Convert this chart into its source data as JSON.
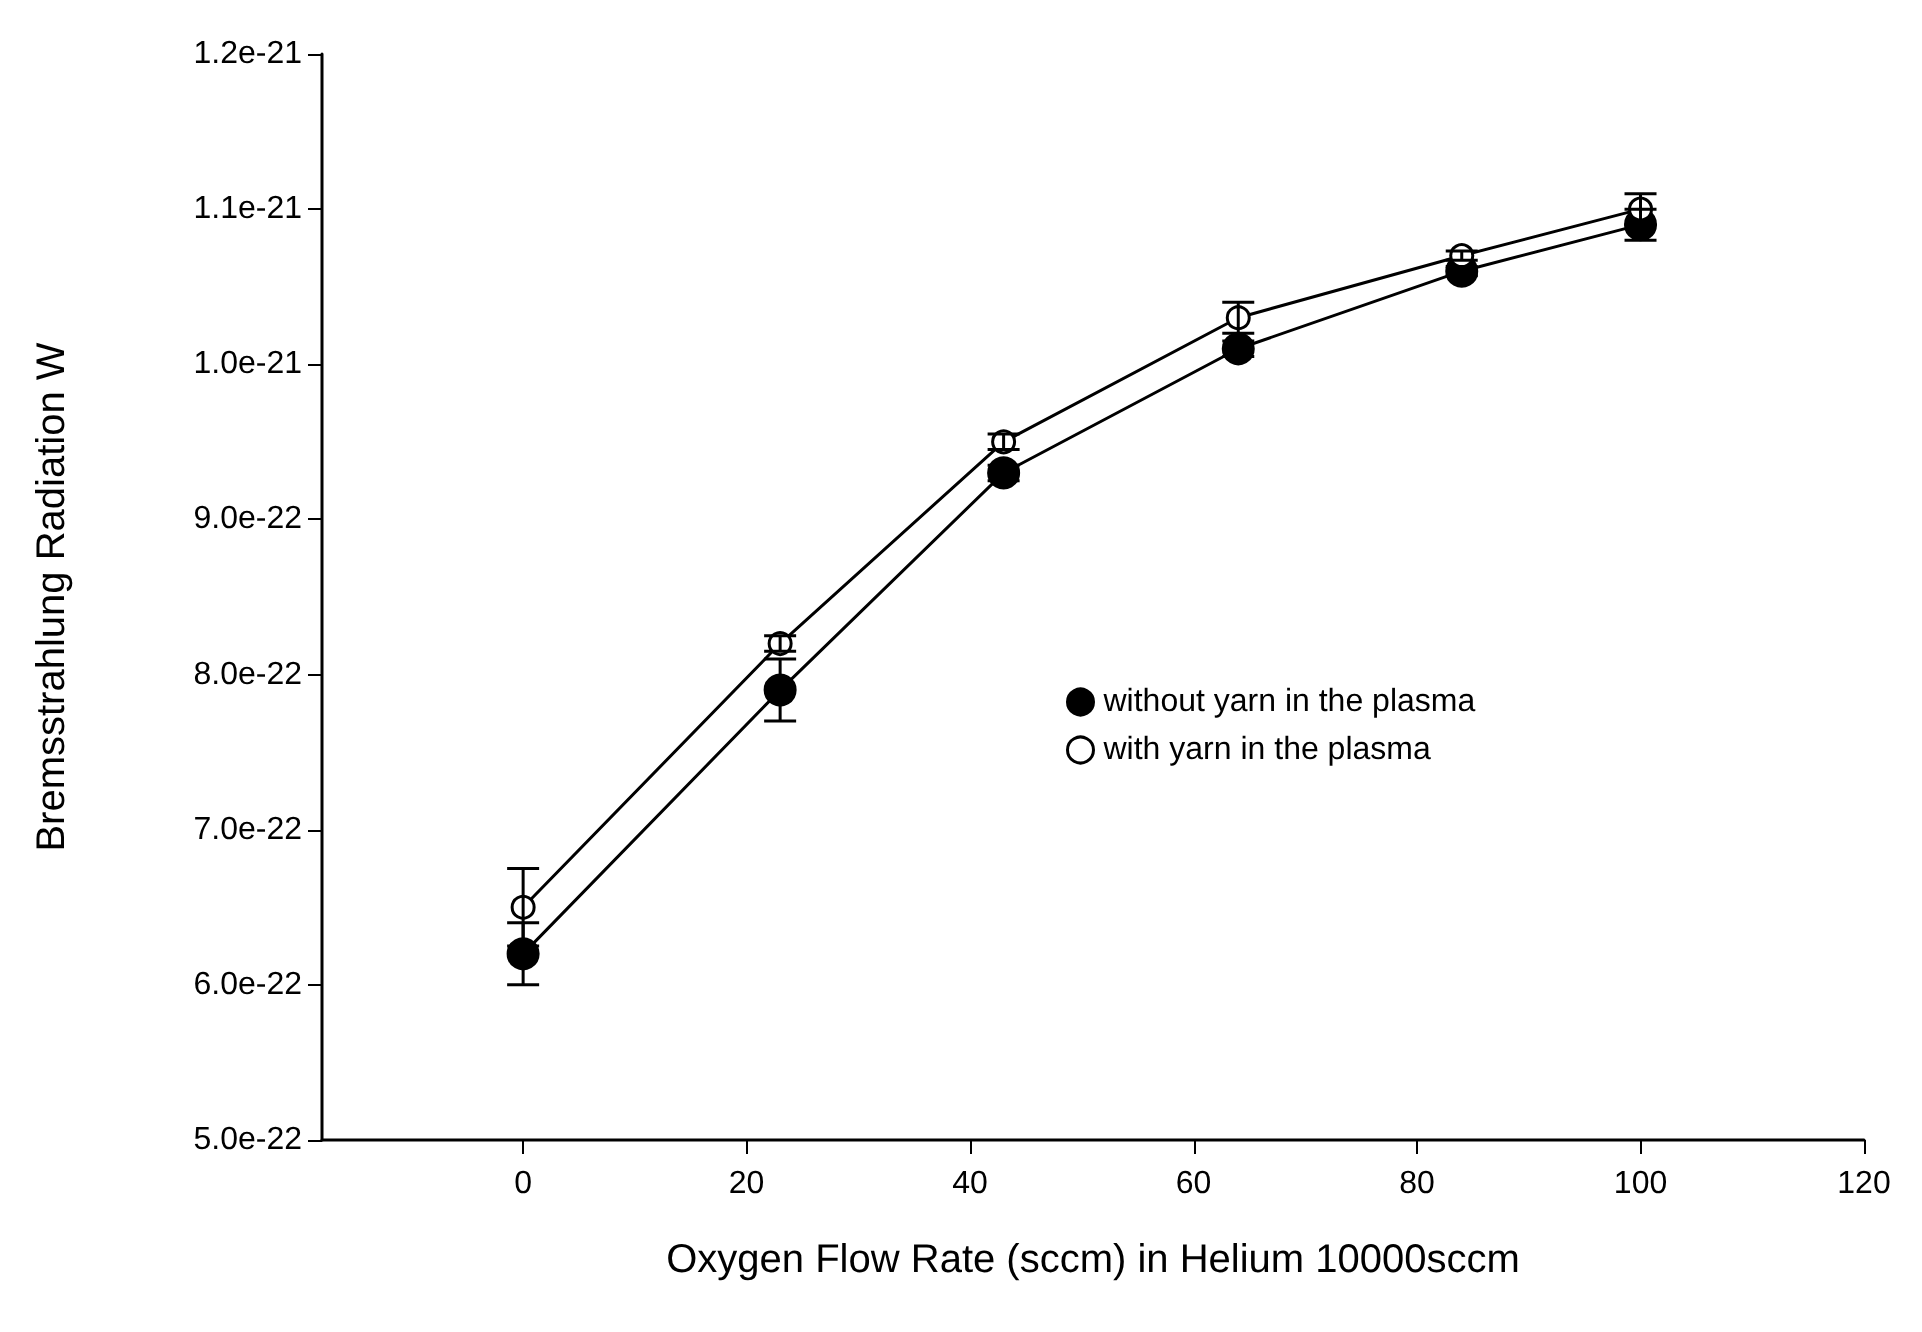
{
  "chart_data": {
    "type": "line",
    "xlabel": "Oxygen Flow Rate (sccm) in Helium 10000sccm",
    "ylabel": "Bremsstrahlung Radiation W",
    "x": [
      0,
      23,
      43,
      64,
      84,
      100
    ],
    "series": [
      {
        "name": "without yarn in the plasma",
        "color": "#000000",
        "values": [
          6.2e-22,
          7.9e-22,
          9.3e-22,
          1.01e-21,
          1.06e-21,
          1.09e-21
        ],
        "errors": [
          2e-23,
          2e-23,
          5e-24,
          5e-24,
          3e-24,
          1e-23
        ]
      },
      {
        "name": "with yarn in the plasma",
        "color": "#000000",
        "values": [
          6.5e-22,
          8.2e-22,
          9.5e-22,
          1.03e-21,
          1.07e-21,
          1.1e-21
        ],
        "errors": [
          2.5e-23,
          5e-24,
          5e-24,
          1e-23,
          3e-24,
          1e-23
        ]
      }
    ],
    "xlim": [
      -18,
      120
    ],
    "xticks": [
      0,
      20,
      40,
      60,
      80,
      100,
      120
    ],
    "ylim": [
      5e-22,
      1.2e-21
    ],
    "yticks": [
      {
        "value": 5e-22,
        "label": "5.0e-22"
      },
      {
        "value": 6e-22,
        "label": "6.0e-22"
      },
      {
        "value": 7e-22,
        "label": "7.0e-22"
      },
      {
        "value": 8e-22,
        "label": "8.0e-22"
      },
      {
        "value": 9e-22,
        "label": "9.0e-22"
      },
      {
        "value": 1e-21,
        "label": "1.0e-21"
      },
      {
        "value": 1.1e-21,
        "label": "1.1e-21"
      },
      {
        "value": 1.2e-21,
        "label": "1.2e-21"
      }
    ],
    "grid": false,
    "legend": "right",
    "marker": "circle",
    "line_style": "solid"
  }
}
